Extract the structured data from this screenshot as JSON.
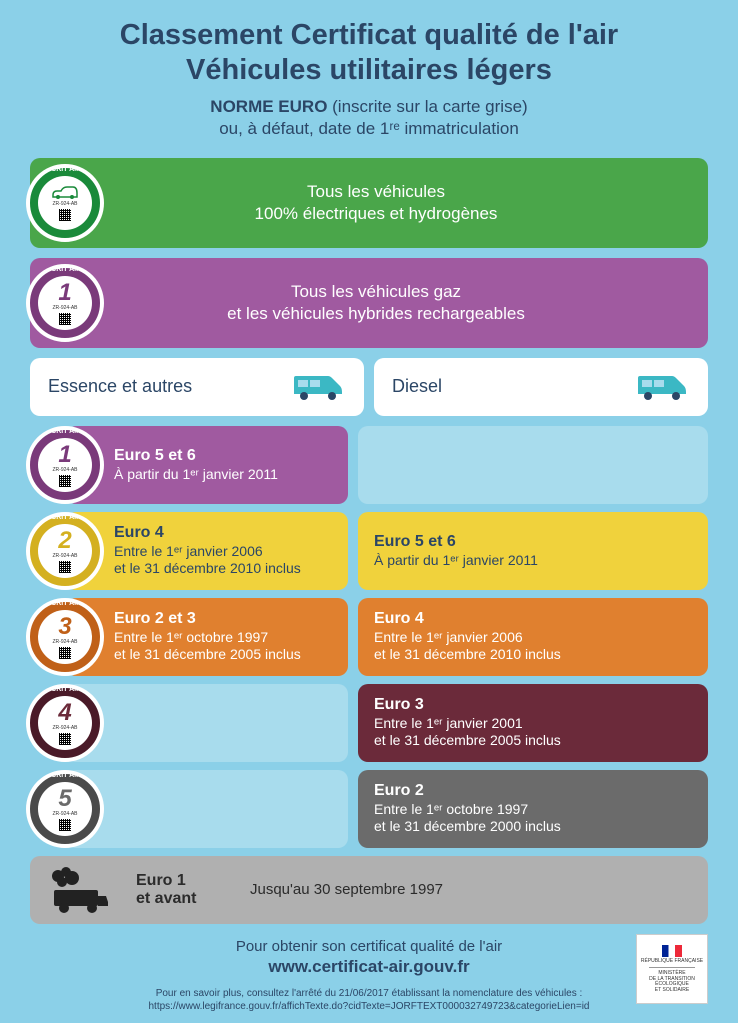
{
  "title_line1": "Classement Certificat qualité de l'air",
  "title_line2": "Véhicules utilitaires légers",
  "subtitle_bold": "NORME EURO",
  "subtitle_rest": " (inscrite sur la carte grise)",
  "subtitle_line2": "ou, à défaut, date de 1ʳᵉ immatriculation",
  "banner_green_l1": "Tous les véhicules",
  "banner_green_l2": "100% électriques et hydrogènes",
  "banner_purple_l1": "Tous les véhicules gaz",
  "banner_purple_l2": "et les véhicules hybrides rechargeables",
  "fuel_petrol": "Essence et autres",
  "fuel_diesel": "Diesel",
  "sticker_label": "CRIT'Air",
  "sticker_code": "ZR-924-AB",
  "stickers": {
    "green": {
      "outer": "#1a8a3a",
      "ring": "#ffffff",
      "num_color": "#1a8a3a"
    },
    "purple": {
      "outer": "#7a3a7a",
      "ring": "#ffffff",
      "num": "1",
      "num_color": "#7a3a7a"
    },
    "yellow": {
      "outer": "#d4b020",
      "ring": "#ffffff",
      "num": "2",
      "num_color": "#d4b020"
    },
    "orange": {
      "outer": "#c06018",
      "ring": "#ffffff",
      "num": "3",
      "num_color": "#c06018"
    },
    "maroon": {
      "outer": "#4a1a28",
      "ring": "#ffffff",
      "num": "4",
      "num_color": "#6b2a3a"
    },
    "grey": {
      "outer": "#4a4a4a",
      "ring": "#ffffff",
      "num": "5",
      "num_color": "#6b6b6b"
    }
  },
  "rows": [
    {
      "petrol": {
        "title": "Euro 5 et 6",
        "text": "À partir du 1ᵉʳ janvier 2011"
      },
      "diesel": null
    },
    {
      "petrol": {
        "title": "Euro 4",
        "text": "Entre le 1ᵉʳ janvier 2006\net le 31 décembre 2010 inclus"
      },
      "diesel": {
        "title": "Euro 5 et 6",
        "text": "À partir du 1ᵉʳ janvier 2011"
      }
    },
    {
      "petrol": {
        "title": "Euro 2 et 3",
        "text": "Entre le 1ᵉʳ octobre 1997\net le 31 décembre 2005 inclus"
      },
      "diesel": {
        "title": "Euro 4",
        "text": "Entre le 1ᵉʳ janvier 2006\net le 31 décembre 2010 inclus"
      }
    },
    {
      "petrol": null,
      "diesel": {
        "title": "Euro 3",
        "text": "Entre le 1ᵉʳ janvier 2001\net le 31 décembre 2005 inclus"
      }
    },
    {
      "petrol": null,
      "diesel": {
        "title": "Euro 2",
        "text": "Entre le 1ᵉʳ octobre 1997\net le 31 décembre 2000 inclus"
      }
    }
  ],
  "euro1_title": "Euro 1\net avant",
  "euro1_text": "Jusqu'au 30 septembre 1997",
  "footer_line1": "Pour obtenir son certificat qualité de l'air",
  "footer_url": "www.certificat-air.gouv.fr",
  "footer_fine1": "Pour en savoir plus, consultez l'arrêté du 21/06/2017 établissant la nomenclature des véhicules :",
  "footer_fine2": "https://www.legifrance.gouv.fr/affichTexte.do?cidTexte=JORFTEXT000032749723&categorieLien=id",
  "gov_text1": "RÉPUBLIQUE FRANÇAISE",
  "gov_text2": "MINISTÈRE\nDE LA TRANSITION\nÉCOLOGIQUE\nET SOLIDAIRE",
  "colors": {
    "page_bg": "#8bd0e8",
    "text_primary": "#2b4666",
    "van": "#3bb8c4"
  }
}
